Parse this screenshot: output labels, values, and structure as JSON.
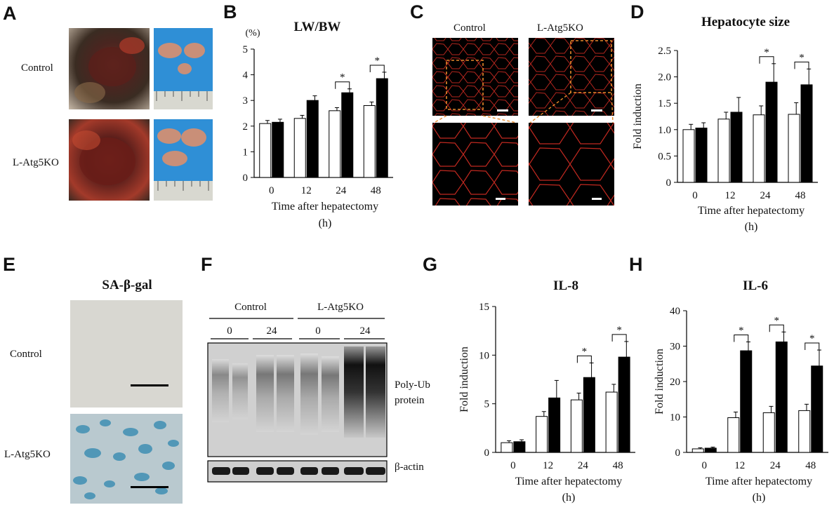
{
  "letters": {
    "A": "A",
    "B": "B",
    "C": "C",
    "D": "D",
    "E": "E",
    "F": "F",
    "G": "G",
    "H": "H"
  },
  "panelA": {
    "row1": "Control",
    "row2": "L-Atg5KO"
  },
  "panelC": {
    "col1": "Control",
    "col2": "L-Atg5KO"
  },
  "panelE": {
    "title": "SA-β-gal",
    "row1": "Control",
    "row2": "L-Atg5KO"
  },
  "panelF": {
    "group1": "Control",
    "group2": "L-Atg5KO",
    "lanes": [
      "0",
      "24",
      "0",
      "24"
    ],
    "band1": "Poly-Ub protein",
    "band1_line1": "Poly-Ub",
    "band1_line2": "protein",
    "band2": "β-actin"
  },
  "chart_data": [
    {
      "id": "B",
      "type": "bar",
      "title": "LW/BW",
      "unit": "(%)",
      "xlabel": "Time after hepatectomy",
      "xunit": "(h)",
      "ylabel": "",
      "categories": [
        "0",
        "12",
        "24",
        "48"
      ],
      "ylim": [
        0,
        5
      ],
      "yticks": [
        "0",
        "1",
        "2",
        "3",
        "4",
        "5"
      ],
      "series": [
        {
          "name": "",
          "values": [
            2.1,
            2.3,
            2.6,
            2.8
          ],
          "errors": [
            0.12,
            0.12,
            0.12,
            0.14
          ]
        },
        {
          "name": "",
          "values": [
            2.15,
            3.0,
            3.3,
            3.85
          ],
          "errors": [
            0.12,
            0.18,
            0.15,
            0.25
          ]
        }
      ],
      "significance": [
        "",
        "",
        "*",
        "*"
      ]
    },
    {
      "id": "D",
      "type": "bar",
      "title": "Hepatocyte size",
      "unit": "",
      "xlabel": "Time after hepatectomy",
      "xunit": "(h)",
      "ylabel": "Fold induction",
      "categories": [
        "0",
        "12",
        "24",
        "48"
      ],
      "ylim": [
        0,
        2.5
      ],
      "yticks": [
        "0",
        "0.5",
        "1.0",
        "1.5",
        "2.0",
        "2.5"
      ],
      "series": [
        {
          "name": "",
          "values": [
            1.0,
            1.2,
            1.28,
            1.29
          ],
          "errors": [
            0.1,
            0.13,
            0.17,
            0.22
          ]
        },
        {
          "name": "",
          "values": [
            1.03,
            1.33,
            1.9,
            1.85
          ],
          "errors": [
            0.1,
            0.28,
            0.35,
            0.3
          ]
        }
      ],
      "significance": [
        "",
        "",
        "*",
        "*"
      ]
    },
    {
      "id": "G",
      "type": "bar",
      "title": "IL-8",
      "unit": "",
      "xlabel": "Time after hepatectomy",
      "xunit": "(h)",
      "ylabel": "Fold induction",
      "categories": [
        "0",
        "12",
        "24",
        "48"
      ],
      "ylim": [
        0,
        15
      ],
      "yticks": [
        "0",
        "5",
        "10",
        "15"
      ],
      "series": [
        {
          "name": "",
          "values": [
            1.0,
            3.7,
            5.4,
            6.2
          ],
          "errors": [
            0.2,
            0.5,
            0.7,
            0.8
          ]
        },
        {
          "name": "",
          "values": [
            1.1,
            5.6,
            7.7,
            9.8
          ],
          "errors": [
            0.2,
            1.8,
            1.5,
            1.6
          ]
        }
      ],
      "significance": [
        "",
        "",
        "*",
        "*"
      ]
    },
    {
      "id": "H",
      "type": "bar",
      "title": "IL-6",
      "unit": "",
      "xlabel": "Time after hepatectomy",
      "xunit": "(h)",
      "ylabel": "Fold induction",
      "categories": [
        "0",
        "12",
        "24",
        "48"
      ],
      "ylim": [
        0,
        40
      ],
      "yticks": [
        "0",
        "10",
        "20",
        "30",
        "40"
      ],
      "series": [
        {
          "name": "",
          "values": [
            1.0,
            9.8,
            11.2,
            11.8
          ],
          "errors": [
            0.3,
            1.6,
            1.8,
            1.8
          ]
        },
        {
          "name": "",
          "values": [
            1.2,
            28.7,
            31.2,
            24.4
          ],
          "errors": [
            0.3,
            2.5,
            2.8,
            4.5
          ]
        }
      ],
      "significance": [
        "",
        "*",
        "*",
        "*"
      ]
    }
  ],
  "colors": {
    "bar_control": "#ffffff",
    "bar_ko": "#000000",
    "outline": "#000000"
  }
}
